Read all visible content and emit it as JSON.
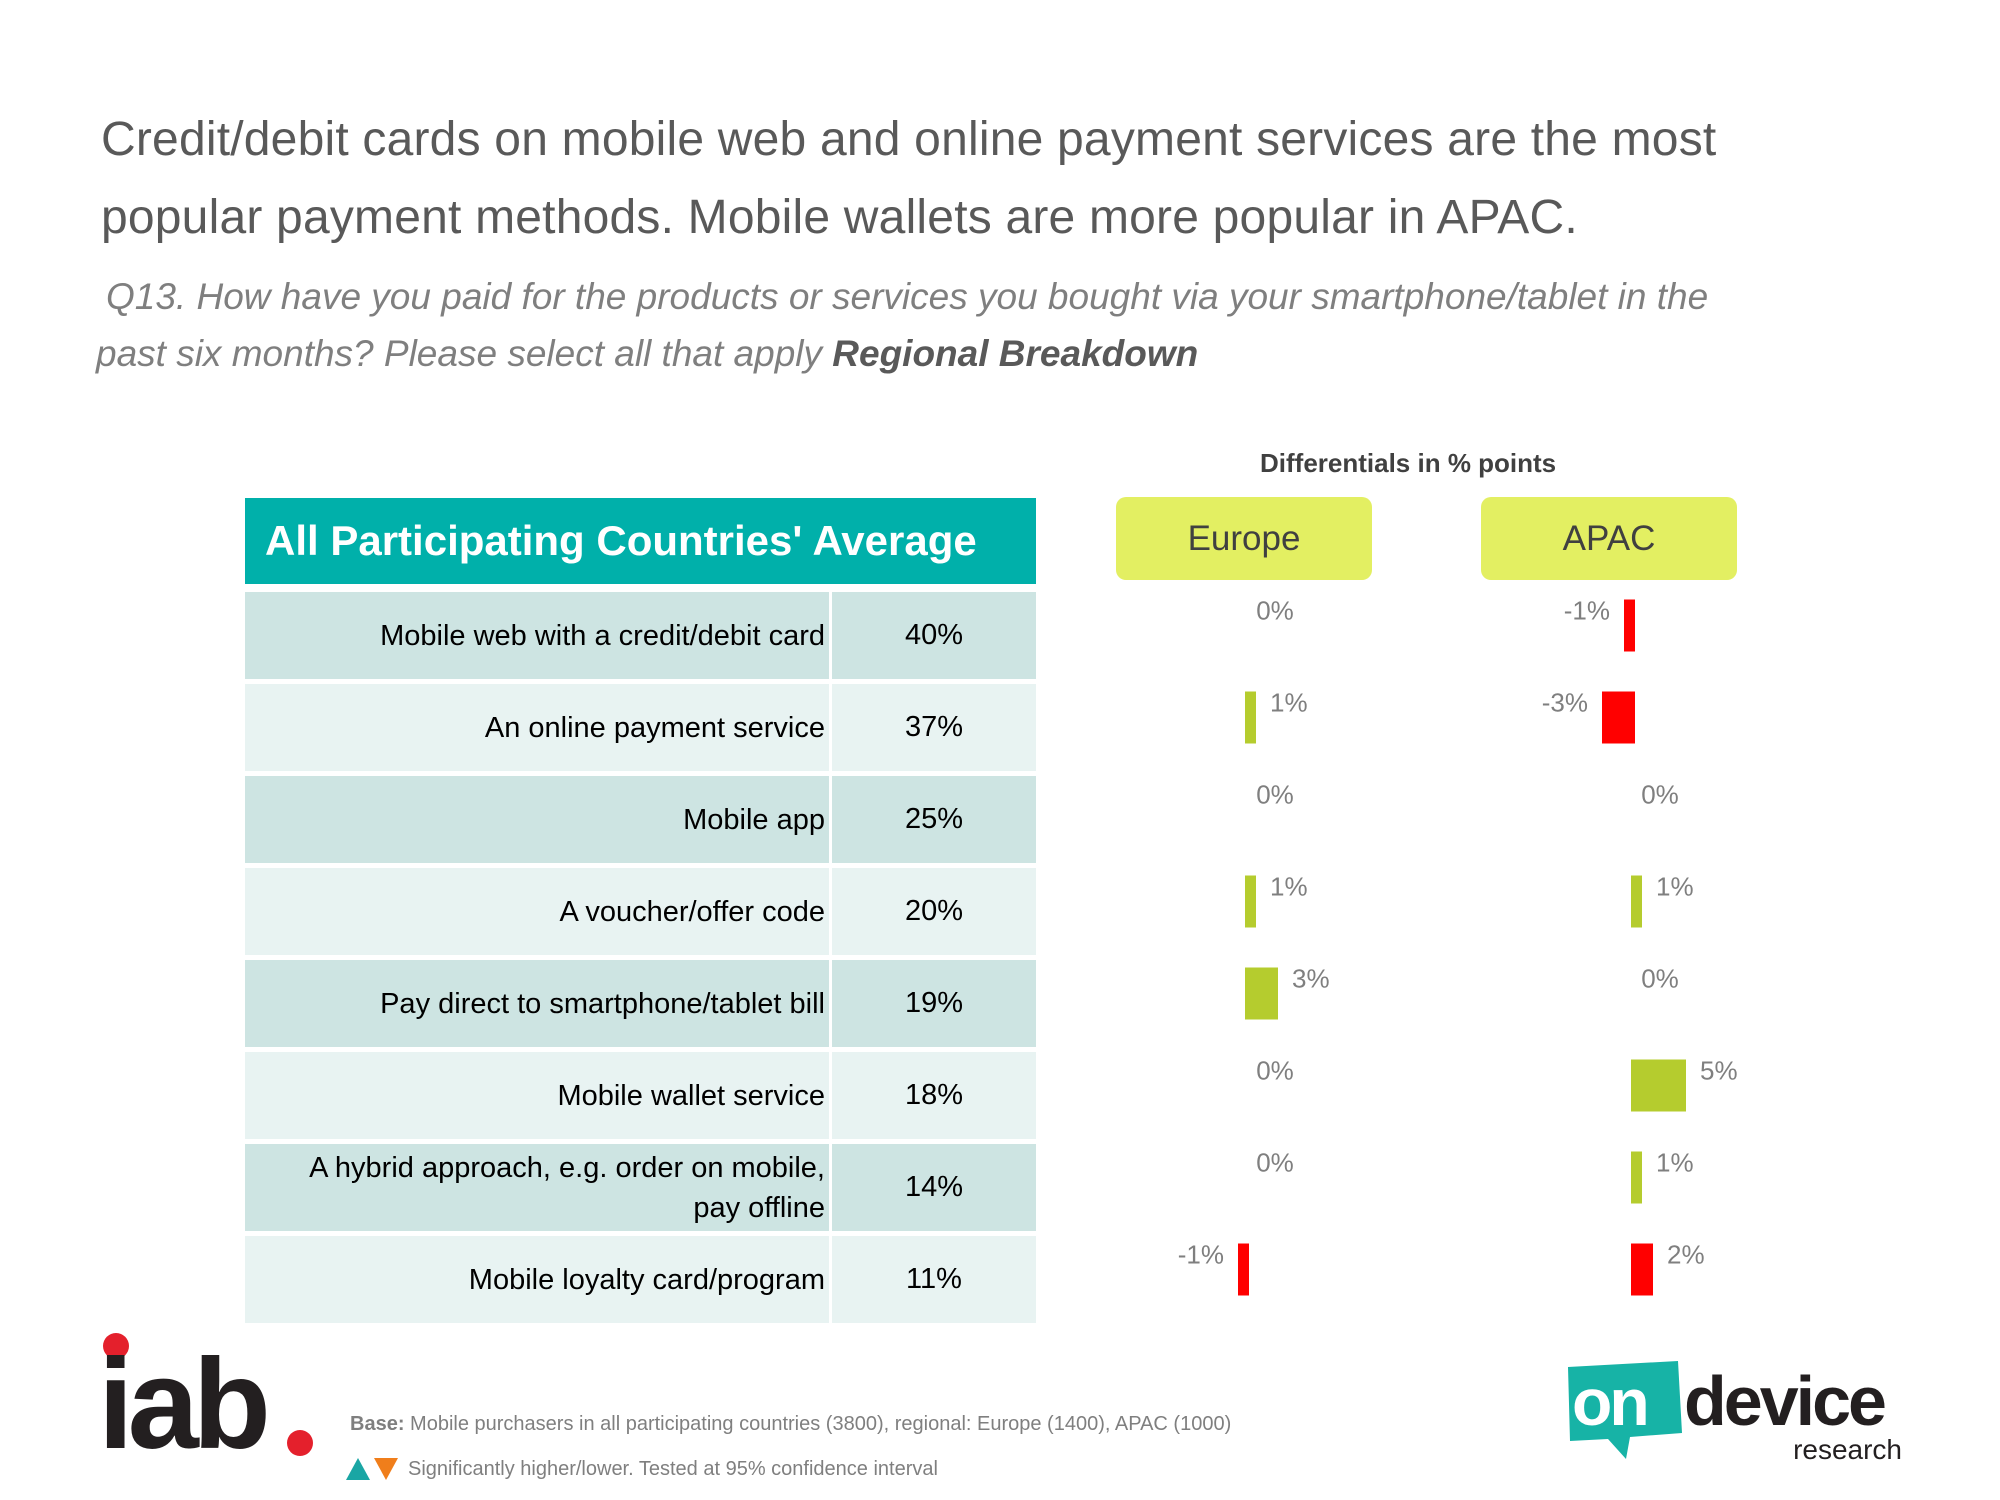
{
  "title": {
    "line1": "Credit/debit cards on mobile web and online payment services are the most",
    "line2": "popular payment methods. Mobile wallets are more popular in APAC."
  },
  "question": {
    "line1": "Q13. How have you paid for the products or services you bought via your smartphone/tablet in the",
    "line2": "past six months? Please select all that apply",
    "emphasis": "Regional Breakdown"
  },
  "table": {
    "header": "All Participating Countries' Average",
    "rows": [
      {
        "label": "Mobile web with a credit/debit card",
        "value": "40%"
      },
      {
        "label": "An online payment service",
        "value": "37%"
      },
      {
        "label": "Mobile app",
        "value": "25%"
      },
      {
        "label": "A voucher/offer code",
        "value": "20%"
      },
      {
        "label": "Pay direct to smartphone/tablet bill",
        "value": "19%"
      },
      {
        "label": "Mobile wallet service",
        "value": "18%"
      },
      {
        "label": "A hybrid approach, e.g. order on mobile, pay offline",
        "value": "14%"
      },
      {
        "label": "Mobile loyalty card/program",
        "value": "11%"
      }
    ]
  },
  "chart_data": {
    "type": "bar",
    "title": "Differentials in % points",
    "categories": [
      "Mobile web with a credit/debit card",
      "An online payment service",
      "Mobile app",
      "A voucher/offer code",
      "Pay direct to smartphone/tablet bill",
      "Mobile wallet service",
      "A hybrid approach, e.g. order on mobile, pay offline",
      "Mobile loyalty card/program"
    ],
    "series": [
      {
        "name": "Europe",
        "values": [
          0,
          1,
          0,
          1,
          3,
          0,
          0,
          -1
        ],
        "labels": [
          "0%",
          "1%",
          "0%",
          "1%",
          "3%",
          "0%",
          "0%",
          "-1%"
        ]
      },
      {
        "name": "APAC",
        "values": [
          -1,
          -3,
          0,
          1,
          0,
          5,
          1,
          2
        ],
        "labels": [
          "-1%",
          "-3%",
          "0%",
          "1%",
          "0%",
          "5%",
          "1%",
          "2%"
        ]
      }
    ],
    "bar_colors": {
      "positive": "#b5cc2e",
      "negative": "#ff0000",
      "apac_mobile_loyalty": "#ff0000"
    }
  },
  "footer": {
    "base_label": "Base:",
    "base_text": "Mobile purchasers in all participating countries (3800), regional: Europe (1400),  APAC (1000)",
    "significance_text": "Significantly higher/lower. Tested at 95% confidence interval",
    "iab_logo_text": "iab",
    "ondevice_logo_text": "on",
    "ondevice_logo_text2": "device",
    "ondevice_logo_text3": "research"
  }
}
